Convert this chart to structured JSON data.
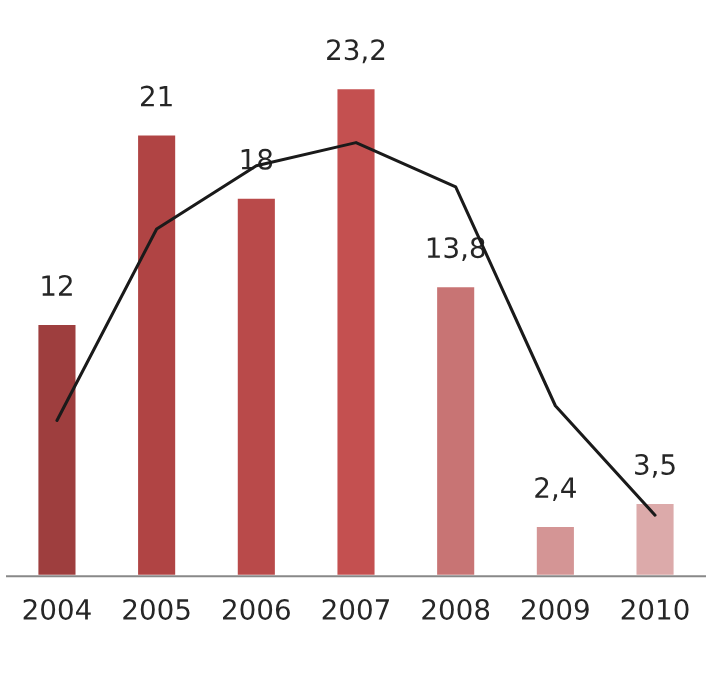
{
  "chart_data": {
    "type": "bar",
    "categories": [
      "2004",
      "2005",
      "2006",
      "2007",
      "2008",
      "2009",
      "2010"
    ],
    "series": [
      {
        "colors": [
          "#9e3e3e",
          "#b04444",
          "#b94a4a",
          "#c45050",
          "#c87474",
          "#d49595",
          "#dcaaaa"
        ],
        "values": [
          12,
          21,
          18,
          23.2,
          13.8,
          2.4,
          3.5
        ],
        "value_labels": [
          "12",
          "21",
          "18",
          "23,2",
          "13,8",
          "2,4",
          "3,5"
        ]
      },
      {
        "type": "line",
        "color": "#1a1a1a",
        "values": [
          7.4,
          16.5,
          19.5,
          20.6,
          18.5,
          8.1,
          2.9
        ]
      }
    ],
    "tick_labels": "x",
    "grid": false
  }
}
